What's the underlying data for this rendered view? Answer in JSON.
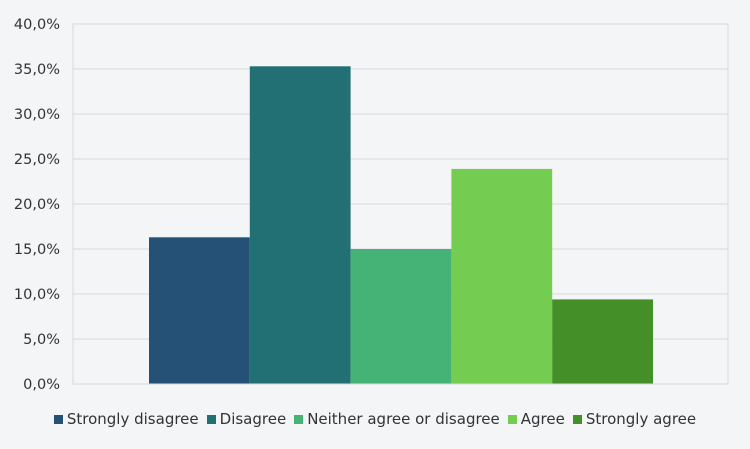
{
  "chart_data": {
    "type": "bar",
    "title": "",
    "xlabel": "",
    "ylabel": "",
    "ylim": [
      0,
      40
    ],
    "y_tick_step": 5,
    "y_tick_labels": [
      "0,0%",
      "5,0%",
      "10,0%",
      "15,0%",
      "20,0%",
      "25,0%",
      "30,0%",
      "35,0%",
      "40,0%"
    ],
    "grid": true,
    "legend_position": "bottom",
    "series": [
      {
        "name": "Strongly disagree",
        "values": [
          16.3
        ],
        "color": "#255177"
      },
      {
        "name": "Disagree",
        "values": [
          35.3
        ],
        "color": "#237074"
      },
      {
        "name": "Neither agree or disagree",
        "values": [
          15.0
        ],
        "color": "#46b376"
      },
      {
        "name": "Agree",
        "values": [
          23.9
        ],
        "color": "#74cc50"
      },
      {
        "name": "Strongly agree",
        "values": [
          9.4
        ],
        "color": "#458f28"
      }
    ]
  }
}
